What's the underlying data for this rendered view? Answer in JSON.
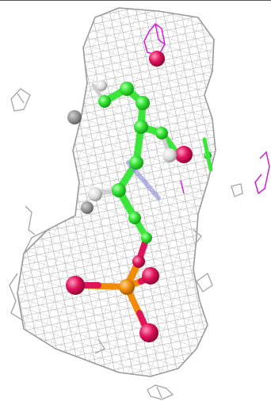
{
  "viewer": {
    "background": "#ffffff",
    "colors": {
      "mesh": "#a9a9a9",
      "mesh_dark": "#8c8c8c",
      "carbon": "#39e639",
      "carbon_dark": "#1eb41e",
      "oxygen": "#e0145a",
      "phosphorus": "#f08c0a",
      "hydrogen": "#d9d9d9",
      "neighbor": "#d21ed2",
      "bonds_blue": "#8a8ad8"
    },
    "icons": [
      "electron-density-mesh",
      "ligand-ball-and-stick"
    ]
  }
}
